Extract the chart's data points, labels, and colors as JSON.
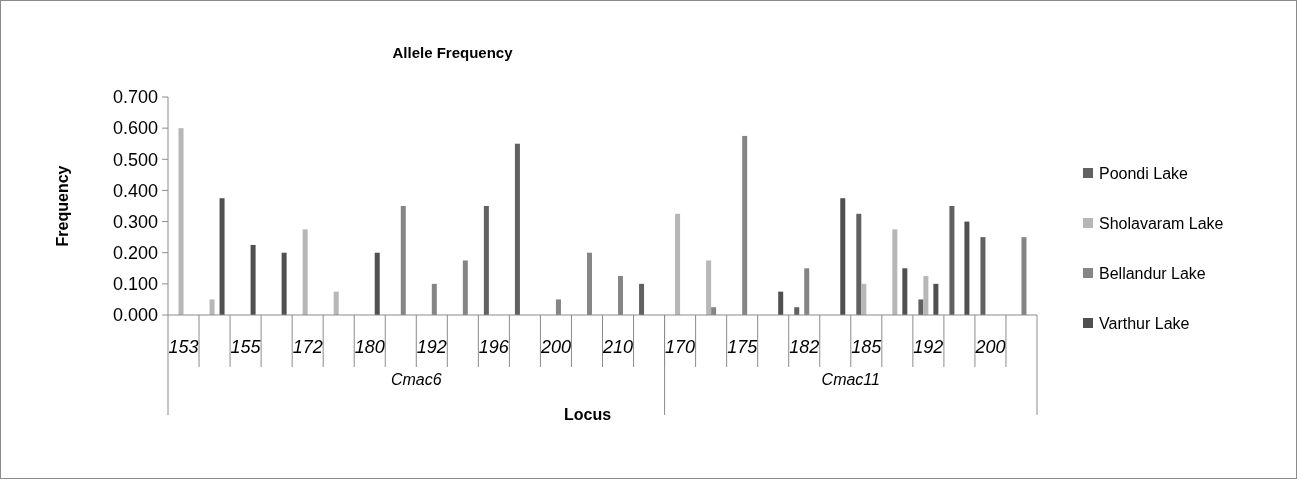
{
  "chart_data": {
    "type": "bar",
    "title": "Allele Frequency",
    "xlabel": "Locus",
    "ylabel": "Frequency",
    "categories": [
      "153",
      null,
      "155",
      null,
      "172",
      null,
      "180",
      null,
      "192",
      null,
      "196",
      null,
      "200",
      null,
      "210",
      null,
      "170",
      null,
      "175",
      null,
      "182",
      null,
      "185",
      null,
      "192",
      null,
      "200",
      null
    ],
    "annotations": [
      "Cmac6",
      "Cmac11"
    ],
    "series": [
      {
        "name": "Poondi Lake",
        "color": "#616161",
        "values": [
          0,
          0,
          0,
          0,
          0,
          0,
          0,
          0,
          0,
          0,
          0.35,
          0.55,
          0,
          0,
          0,
          0.1,
          0,
          0,
          0,
          0,
          0.025,
          0,
          0.325,
          0,
          0.05,
          0.35,
          0.25,
          0
        ]
      },
      {
        "name": "Sholavaram Lake",
        "color": "#b7b7b7",
        "values": [
          0.6,
          0.05,
          0,
          0,
          0.275,
          0.075,
          0,
          0,
          0,
          0,
          0,
          0,
          0,
          0,
          0,
          0,
          0.325,
          0.175,
          0,
          0,
          0,
          0,
          0.1,
          0.275,
          0.125,
          0,
          0,
          0
        ]
      },
      {
        "name": "Bellandur Lake",
        "color": "#858585",
        "values": [
          0,
          0,
          0,
          0,
          0,
          0,
          0,
          0.35,
          0.1,
          0.175,
          0,
          0,
          0.05,
          0.2,
          0.125,
          0,
          0,
          0.025,
          0.575,
          0,
          0.15,
          0,
          0,
          0,
          0,
          0,
          0,
          0.25
        ]
      },
      {
        "name": "Varthur Lake",
        "color": "#505050",
        "values": [
          0,
          0.375,
          0.225,
          0.2,
          0,
          0,
          0.2,
          0,
          0,
          0,
          0,
          0,
          0,
          0,
          0,
          0,
          0,
          0,
          0,
          0.075,
          0,
          0.375,
          0,
          0.15,
          0.1,
          0.3,
          0,
          0
        ]
      }
    ],
    "ylim": [
      0,
      0.7
    ],
    "yticks": [
      {
        "value": 0,
        "label": "0.000"
      },
      {
        "value": 0.1,
        "label": "0.100"
      },
      {
        "value": 0.2,
        "label": "0.200"
      },
      {
        "value": 0.3,
        "label": "0.300"
      },
      {
        "value": 0.4,
        "label": "0.400"
      },
      {
        "value": 0.5,
        "label": "0.500"
      },
      {
        "value": 0.6,
        "label": "0.600"
      },
      {
        "value": 0.7,
        "label": "0.700"
      }
    ],
    "grid": false,
    "legend": "right"
  }
}
